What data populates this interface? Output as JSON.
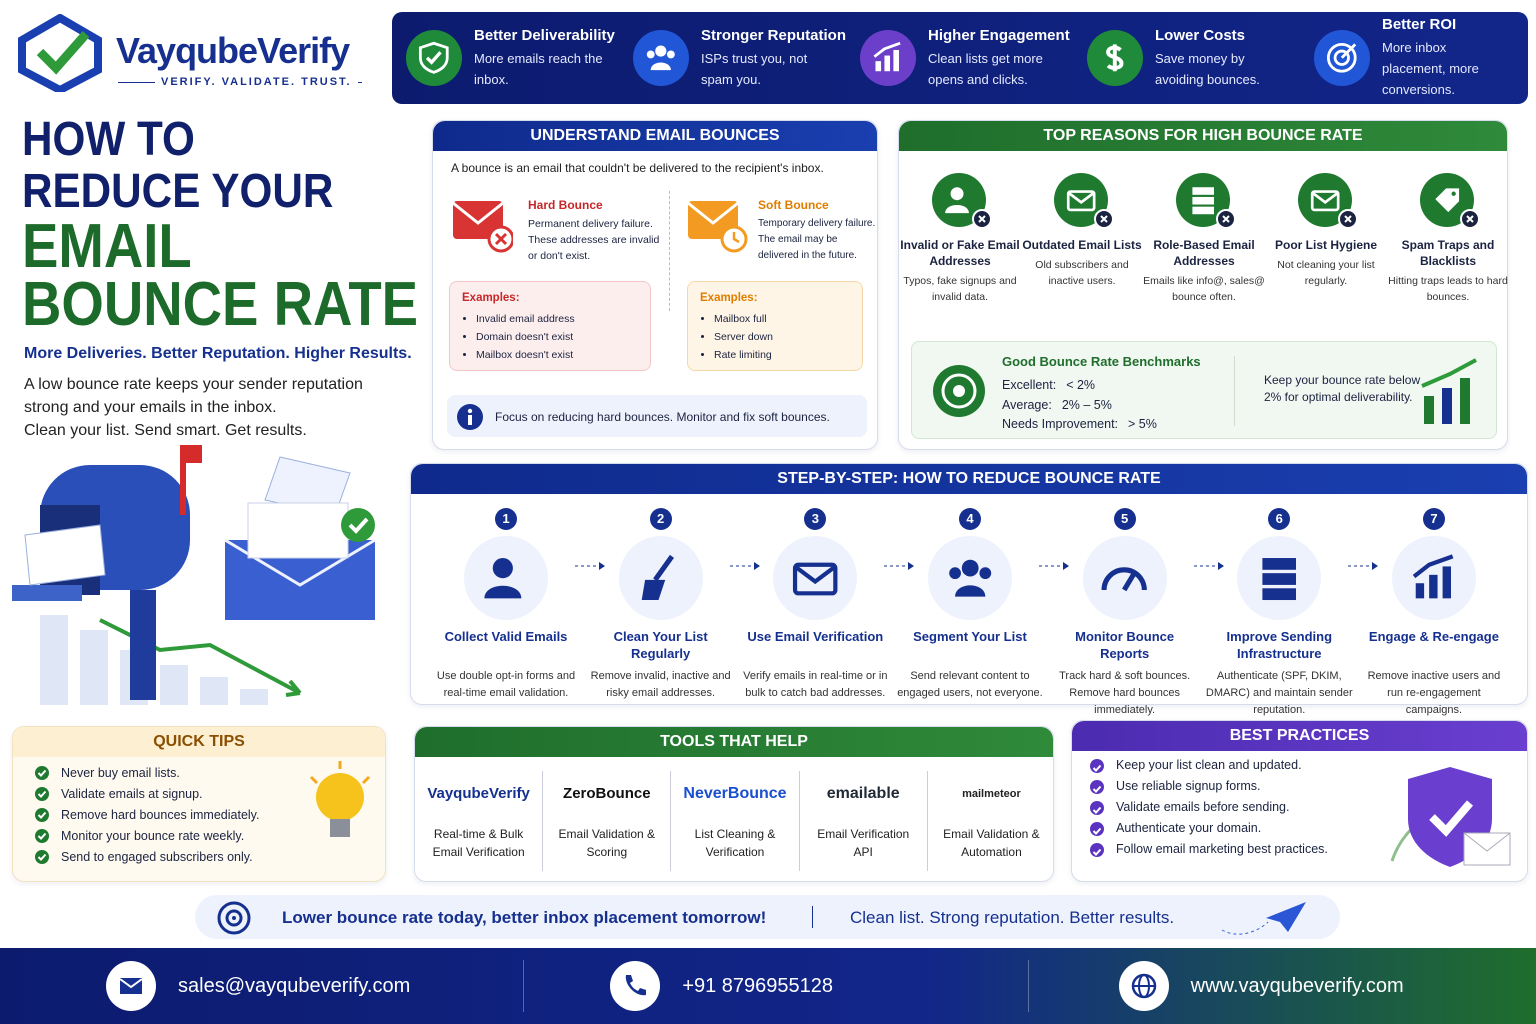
{
  "brand": {
    "name": "VayqubeVerify",
    "tagline": "VERIFY. VALIDATE. TRUST."
  },
  "benefits": [
    {
      "title": "Better Deliverability",
      "text": "More emails reach the inbox."
    },
    {
      "title": "Stronger Reputation",
      "text": "ISPs trust you, not spam you."
    },
    {
      "title": "Higher Engagement",
      "text": "Clean lists get more opens and clicks."
    },
    {
      "title": "Lower Costs",
      "text": "Save money by avoiding bounces."
    },
    {
      "title": "Better ROI",
      "text": "More inbox placement, more conversions."
    }
  ],
  "hero": {
    "title_lines": [
      "HOW TO",
      "REDUCE YOUR",
      "EMAIL",
      "BOUNCE RATE"
    ],
    "subtitle": "More Deliveries. Better Reputation. Higher Results.",
    "body": [
      "A low bounce rate keeps your sender reputation",
      "strong and your emails in the inbox.",
      "Clean your list. Send smart. Get results."
    ]
  },
  "understand": {
    "heading": "UNDERSTAND EMAIL BOUNCES",
    "intro": "A bounce is an email that couldn't be delivered to the recipient's inbox.",
    "hard": {
      "title": "Hard Bounce",
      "text": "Permanent delivery failure. These addresses are invalid or don't exist.",
      "examples_label": "Examples:",
      "examples": [
        "Invalid email address",
        "Domain doesn't exist",
        "Mailbox doesn't exist"
      ]
    },
    "soft": {
      "title": "Soft Bounce",
      "text": "Temporary delivery failure. The email may be delivered in the future.",
      "examples_label": "Examples:",
      "examples": [
        "Mailbox full",
        "Server down",
        "Rate limiting"
      ]
    },
    "note": "Focus on reducing hard bounces. Monitor and fix soft bounces."
  },
  "reasons": {
    "heading": "TOP REASONS FOR HIGH BOUNCE RATE",
    "items": [
      {
        "title": "Invalid or Fake Email Addresses",
        "text": "Typos, fake signups and invalid data."
      },
      {
        "title": "Outdated Email Lists",
        "text": "Old subscribers and inactive users."
      },
      {
        "title": "Role-Based Email Addresses",
        "text": "Emails like info@, sales@ bounce often."
      },
      {
        "title": "Poor List Hygiene",
        "text": "Not cleaning your list regularly."
      },
      {
        "title": "Spam Traps and Blacklists",
        "text": "Hitting traps leads to hard bounces."
      }
    ],
    "benchmarks": {
      "title": "Good Bounce Rate Benchmarks",
      "rows": [
        {
          "label": "Excellent:",
          "value": "< 2%"
        },
        {
          "label": "Average:",
          "value": "2% – 5%"
        },
        {
          "label": "Needs Improvement:",
          "value": "> 5%"
        }
      ],
      "note": "Keep your bounce rate below 2% for optimal deliverability."
    }
  },
  "steps": {
    "heading": "STEP-BY-STEP: HOW TO REDUCE BOUNCE RATE",
    "items": [
      {
        "number": 1,
        "title": "Collect Valid Emails",
        "text": "Use double opt-in forms and real-time email validation."
      },
      {
        "number": 2,
        "title": "Clean Your List Regularly",
        "text": "Remove invalid, inactive and risky email addresses."
      },
      {
        "number": 3,
        "title": "Use Email Verification",
        "text": "Verify emails in real-time or in bulk to catch bad addresses."
      },
      {
        "number": 4,
        "title": "Segment Your List",
        "text": "Send relevant content to engaged users, not everyone."
      },
      {
        "number": 5,
        "title": "Monitor Bounce Reports",
        "text": "Track hard & soft bounces. Remove hard bounces immediately."
      },
      {
        "number": 6,
        "title": "Improve Sending Infrastructure",
        "text": "Authenticate (SPF, DKIM, DMARC) and maintain sender reputation."
      },
      {
        "number": 7,
        "title": "Engage & Re-engage",
        "text": "Remove inactive users and run re-engagement campaigns."
      }
    ]
  },
  "quick_tips": {
    "heading": "QUICK TIPS",
    "items": [
      "Never buy email lists.",
      "Validate emails at signup.",
      "Remove hard bounces immediately.",
      "Monitor your bounce rate weekly.",
      "Send to engaged subscribers only."
    ]
  },
  "tools": {
    "heading": "TOOLS THAT HELP",
    "items": [
      {
        "name": "VayqubeVerify",
        "text": "Real-time & Bulk Email Verification"
      },
      {
        "name": "ZeroBounce",
        "text": "Email Validation & Scoring"
      },
      {
        "name": "NeverBounce",
        "text": "List Cleaning & Verification"
      },
      {
        "name": "emailable",
        "text": "Email Verification API"
      },
      {
        "name": "mailmeteor",
        "text": "Email Validation & Automation"
      }
    ]
  },
  "best_practices": {
    "heading": "BEST PRACTICES",
    "items": [
      "Keep your list clean and updated.",
      "Use reliable signup forms.",
      "Validate emails before sending.",
      "Authenticate your domain.",
      "Follow email marketing best practices."
    ]
  },
  "banner": {
    "left": "Lower bounce rate today, better inbox placement tomorrow!",
    "right": "Clean list. Strong reputation. Better results."
  },
  "contact": {
    "email": "sales@vayqubeverify.com",
    "phone": "+91 8796955128",
    "website": "www.vayqubeverify.com"
  }
}
